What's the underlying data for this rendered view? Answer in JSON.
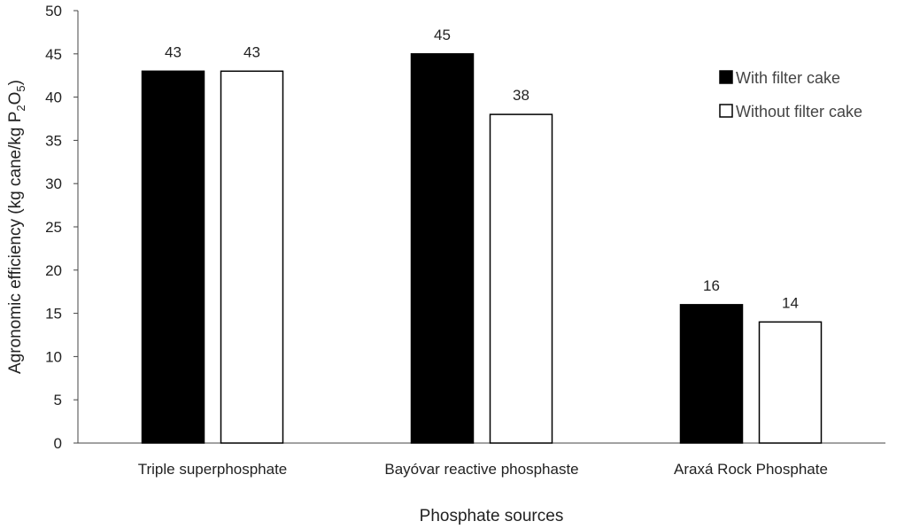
{
  "chart_data": {
    "type": "bar",
    "title": "",
    "xlabel": "Phosphate sources",
    "ylabel": {
      "prefix": "Agronomic efficiency (kg cane/kg P",
      "sub1": "2",
      "mid": "O",
      "sub2": "5",
      "suffix": ")"
    },
    "ylim": [
      0,
      50
    ],
    "yticks": [
      0,
      5,
      10,
      15,
      20,
      25,
      30,
      35,
      40,
      45,
      50
    ],
    "categories": [
      "Triple superphosphate",
      "Bayóvar reactive phosphaste",
      "Araxá Rock Phosphate"
    ],
    "series": [
      {
        "name": "With filter cake",
        "values": [
          43,
          45,
          16
        ],
        "color": "#000000"
      },
      {
        "name": "Without filter cake",
        "values": [
          43,
          38,
          14
        ],
        "color": "#ffffff"
      }
    ],
    "legend_position": "top-right",
    "grid": false
  }
}
